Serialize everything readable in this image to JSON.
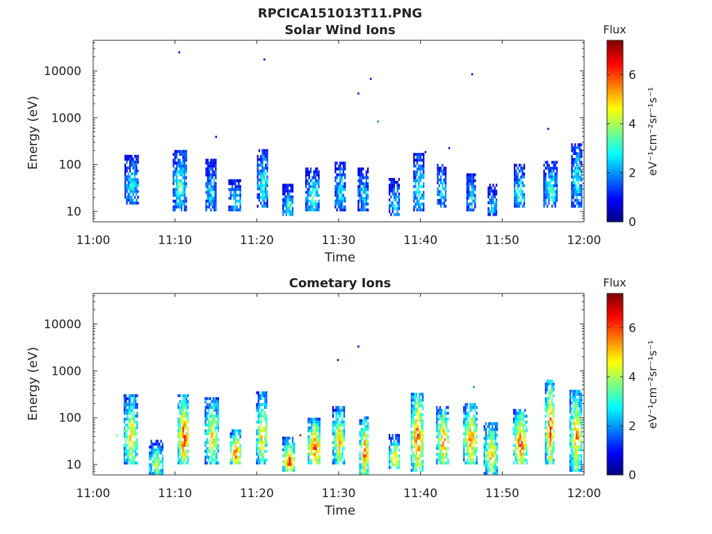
{
  "figure": {
    "title": "RPCICA151013T11.PNG"
  },
  "chart_data": [
    {
      "type": "heatmap",
      "title": "Solar Wind Ions",
      "xlabel": "Time",
      "ylabel": "Energy (eV)",
      "x_ticks": [
        "11:00",
        "11:10",
        "11:20",
        "11:30",
        "11:40",
        "11:50",
        "12:00"
      ],
      "xlim_minutes": [
        0,
        60
      ],
      "y_scale": "log",
      "ylim": [
        6,
        45000
      ],
      "y_ticks": [
        {
          "value": 10,
          "label": "10"
        },
        {
          "value": 100,
          "label": "100"
        },
        {
          "value": 1000,
          "label": "1000"
        },
        {
          "value": 10000,
          "label": "10000"
        }
      ],
      "colorbar": {
        "title": "Flux",
        "label": "eV⁻¹cm⁻²sr⁻¹s⁻¹",
        "range": [
          0,
          7.4
        ],
        "ticks": [
          "0",
          "2",
          "4",
          "6"
        ],
        "colormap": "jet"
      },
      "bursts": [
        {
          "minute": 4.7,
          "energy_min": 14,
          "energy_max": 140,
          "flux": 2.8
        },
        {
          "minute": 10.6,
          "energy_min": 10,
          "energy_max": 200,
          "flux": 3.2
        },
        {
          "minute": 14.4,
          "energy_min": 10,
          "energy_max": 120,
          "flux": 2.6
        },
        {
          "minute": 17.3,
          "energy_min": 10,
          "energy_max": 45,
          "flux": 2.8
        },
        {
          "minute": 20.7,
          "energy_min": 12,
          "energy_max": 200,
          "flux": 3.0
        },
        {
          "minute": 23.8,
          "energy_min": 8,
          "energy_max": 35,
          "flux": 3.0
        },
        {
          "minute": 26.8,
          "energy_min": 10,
          "energy_max": 75,
          "flux": 3.3
        },
        {
          "minute": 30.2,
          "energy_min": 10,
          "energy_max": 110,
          "flux": 2.7
        },
        {
          "minute": 33.0,
          "energy_min": 10,
          "energy_max": 80,
          "flux": 2.6
        },
        {
          "minute": 36.8,
          "energy_min": 8,
          "energy_max": 45,
          "flux": 2.5
        },
        {
          "minute": 39.8,
          "energy_min": 10,
          "energy_max": 160,
          "flux": 3.0
        },
        {
          "minute": 42.6,
          "energy_min": 12,
          "energy_max": 100,
          "flux": 2.7
        },
        {
          "minute": 46.2,
          "energy_min": 10,
          "energy_max": 60,
          "flux": 2.7
        },
        {
          "minute": 48.8,
          "energy_min": 8,
          "energy_max": 35,
          "flux": 2.4
        },
        {
          "minute": 52.1,
          "energy_min": 12,
          "energy_max": 90,
          "flux": 3.2
        },
        {
          "minute": 55.9,
          "energy_min": 12,
          "energy_max": 110,
          "flux": 3.0
        },
        {
          "minute": 59.1,
          "energy_min": 12,
          "energy_max": 250,
          "flux": 3.0
        }
      ],
      "isolated_points": [
        {
          "minute": 10.5,
          "energy": 25000,
          "flux": 0.8
        },
        {
          "minute": 20.9,
          "energy": 17500,
          "flux": 0.8
        },
        {
          "minute": 32.4,
          "energy": 3300,
          "flux": 0.8
        },
        {
          "minute": 33.9,
          "energy": 6800,
          "flux": 0.8
        },
        {
          "minute": 34.8,
          "energy": 830,
          "flux": 2.0
        },
        {
          "minute": 46.3,
          "energy": 8500,
          "flux": 0.8
        },
        {
          "minute": 15.0,
          "energy": 390,
          "flux": 0.8
        },
        {
          "minute": 55.6,
          "energy": 580,
          "flux": 0.8
        },
        {
          "minute": 40.6,
          "energy": 185,
          "flux": 0.8
        },
        {
          "minute": 43.5,
          "energy": 225,
          "flux": 0.8
        }
      ]
    },
    {
      "type": "heatmap",
      "title": "Cometary Ions",
      "xlabel": "Time",
      "ylabel": "Energy (eV)",
      "x_ticks": [
        "11:00",
        "11:10",
        "11:20",
        "11:30",
        "11:40",
        "11:50",
        "12:00"
      ],
      "xlim_minutes": [
        0,
        60
      ],
      "y_scale": "log",
      "ylim": [
        6,
        45000
      ],
      "y_ticks": [
        {
          "value": 10,
          "label": "10"
        },
        {
          "value": 100,
          "label": "100"
        },
        {
          "value": 1000,
          "label": "1000"
        },
        {
          "value": 10000,
          "label": "10000"
        }
      ],
      "colorbar": {
        "title": "Flux",
        "label": "eV⁻¹cm⁻²sr⁻¹s⁻¹",
        "range": [
          0,
          7.4
        ],
        "ticks": [
          "0",
          "2",
          "4",
          "6"
        ],
        "colormap": "jet"
      },
      "bursts": [
        {
          "minute": 4.6,
          "energy_min": 10,
          "energy_max": 280,
          "flux": 4.8
        },
        {
          "minute": 7.7,
          "energy_min": 6,
          "energy_max": 30,
          "flux": 4.2
        },
        {
          "minute": 11.0,
          "energy_min": 10,
          "energy_max": 280,
          "flux": 6.2
        },
        {
          "minute": 14.5,
          "energy_min": 10,
          "energy_max": 250,
          "flux": 4.8
        },
        {
          "minute": 17.4,
          "energy_min": 10,
          "energy_max": 55,
          "flux": 6.0
        },
        {
          "minute": 20.6,
          "energy_min": 10,
          "energy_max": 320,
          "flux": 5.0
        },
        {
          "minute": 23.9,
          "energy_min": 7,
          "energy_max": 35,
          "flux": 6.0
        },
        {
          "minute": 27.0,
          "energy_min": 10,
          "energy_max": 90,
          "flux": 6.3
        },
        {
          "minute": 30.0,
          "energy_min": 10,
          "energy_max": 160,
          "flux": 5.0
        },
        {
          "minute": 33.1,
          "energy_min": 6,
          "energy_max": 100,
          "flux": 5.8
        },
        {
          "minute": 36.8,
          "energy_min": 8,
          "energy_max": 40,
          "flux": 5.0
        },
        {
          "minute": 39.6,
          "energy_min": 7,
          "energy_max": 320,
          "flux": 6.0
        },
        {
          "minute": 42.7,
          "energy_min": 10,
          "energy_max": 170,
          "flux": 5.5
        },
        {
          "minute": 46.1,
          "energy_min": 10,
          "energy_max": 200,
          "flux": 5.5
        },
        {
          "minute": 48.6,
          "energy_min": 6,
          "energy_max": 80,
          "flux": 5.0
        },
        {
          "minute": 52.2,
          "energy_min": 10,
          "energy_max": 140,
          "flux": 6.0
        },
        {
          "minute": 55.8,
          "energy_min": 10,
          "energy_max": 600,
          "flux": 6.0
        },
        {
          "minute": 59.0,
          "energy_min": 7,
          "energy_max": 380,
          "flux": 5.3
        }
      ],
      "isolated_points": [
        {
          "minute": 29.9,
          "energy": 1700,
          "flux": 0.8
        },
        {
          "minute": 32.4,
          "energy": 3300,
          "flux": 0.8
        },
        {
          "minute": 46.5,
          "energy": 450,
          "flux": 2.0
        },
        {
          "minute": 13.7,
          "energy": 230,
          "flux": 2.5
        },
        {
          "minute": 2.9,
          "energy": 42,
          "flux": 3.5
        },
        {
          "minute": 25.3,
          "energy": 42,
          "flux": 7.0
        }
      ]
    }
  ]
}
